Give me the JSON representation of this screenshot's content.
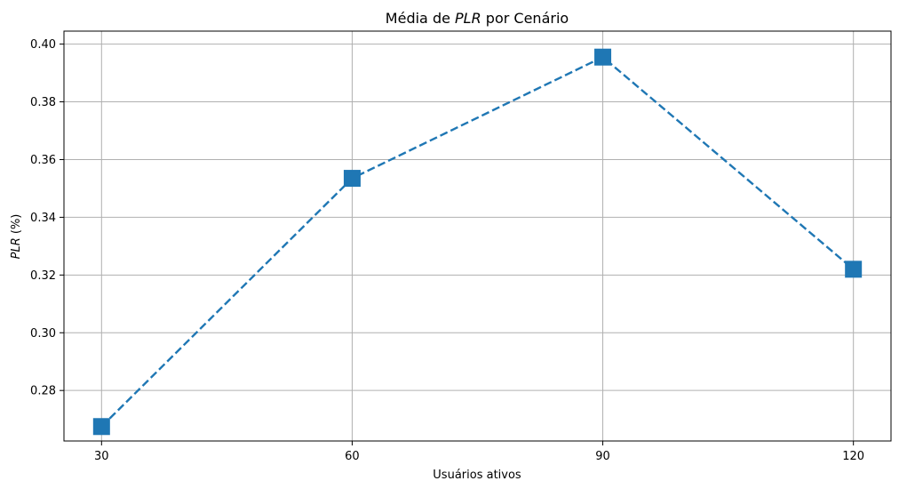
{
  "chart_data": {
    "type": "line",
    "title_prefix": "Média de ",
    "title_emph": "PLR",
    "title_suffix": " por Cenário",
    "xlabel": "Usuários ativos",
    "ylabel_emph": "PLR",
    "ylabel_suffix": " (%)",
    "x": [
      30,
      60,
      90,
      120
    ],
    "x_tick_labels": [
      "30",
      "60",
      "90",
      "120"
    ],
    "xlim": [
      25.5,
      124.5
    ],
    "ylim": [
      0.2625,
      0.4045
    ],
    "y_ticks": [
      0.28,
      0.3,
      0.32,
      0.34,
      0.36,
      0.38,
      0.4
    ],
    "y_tick_labels": [
      "0.28",
      "0.30",
      "0.32",
      "0.34",
      "0.36",
      "0.38",
      "0.40"
    ],
    "series": [
      {
        "values": [
          0.2675,
          0.3535,
          0.3955,
          0.322
        ],
        "color": "#1f77b4",
        "line_style": "dashed",
        "marker": "square"
      }
    ],
    "grid": true,
    "legend": false
  }
}
